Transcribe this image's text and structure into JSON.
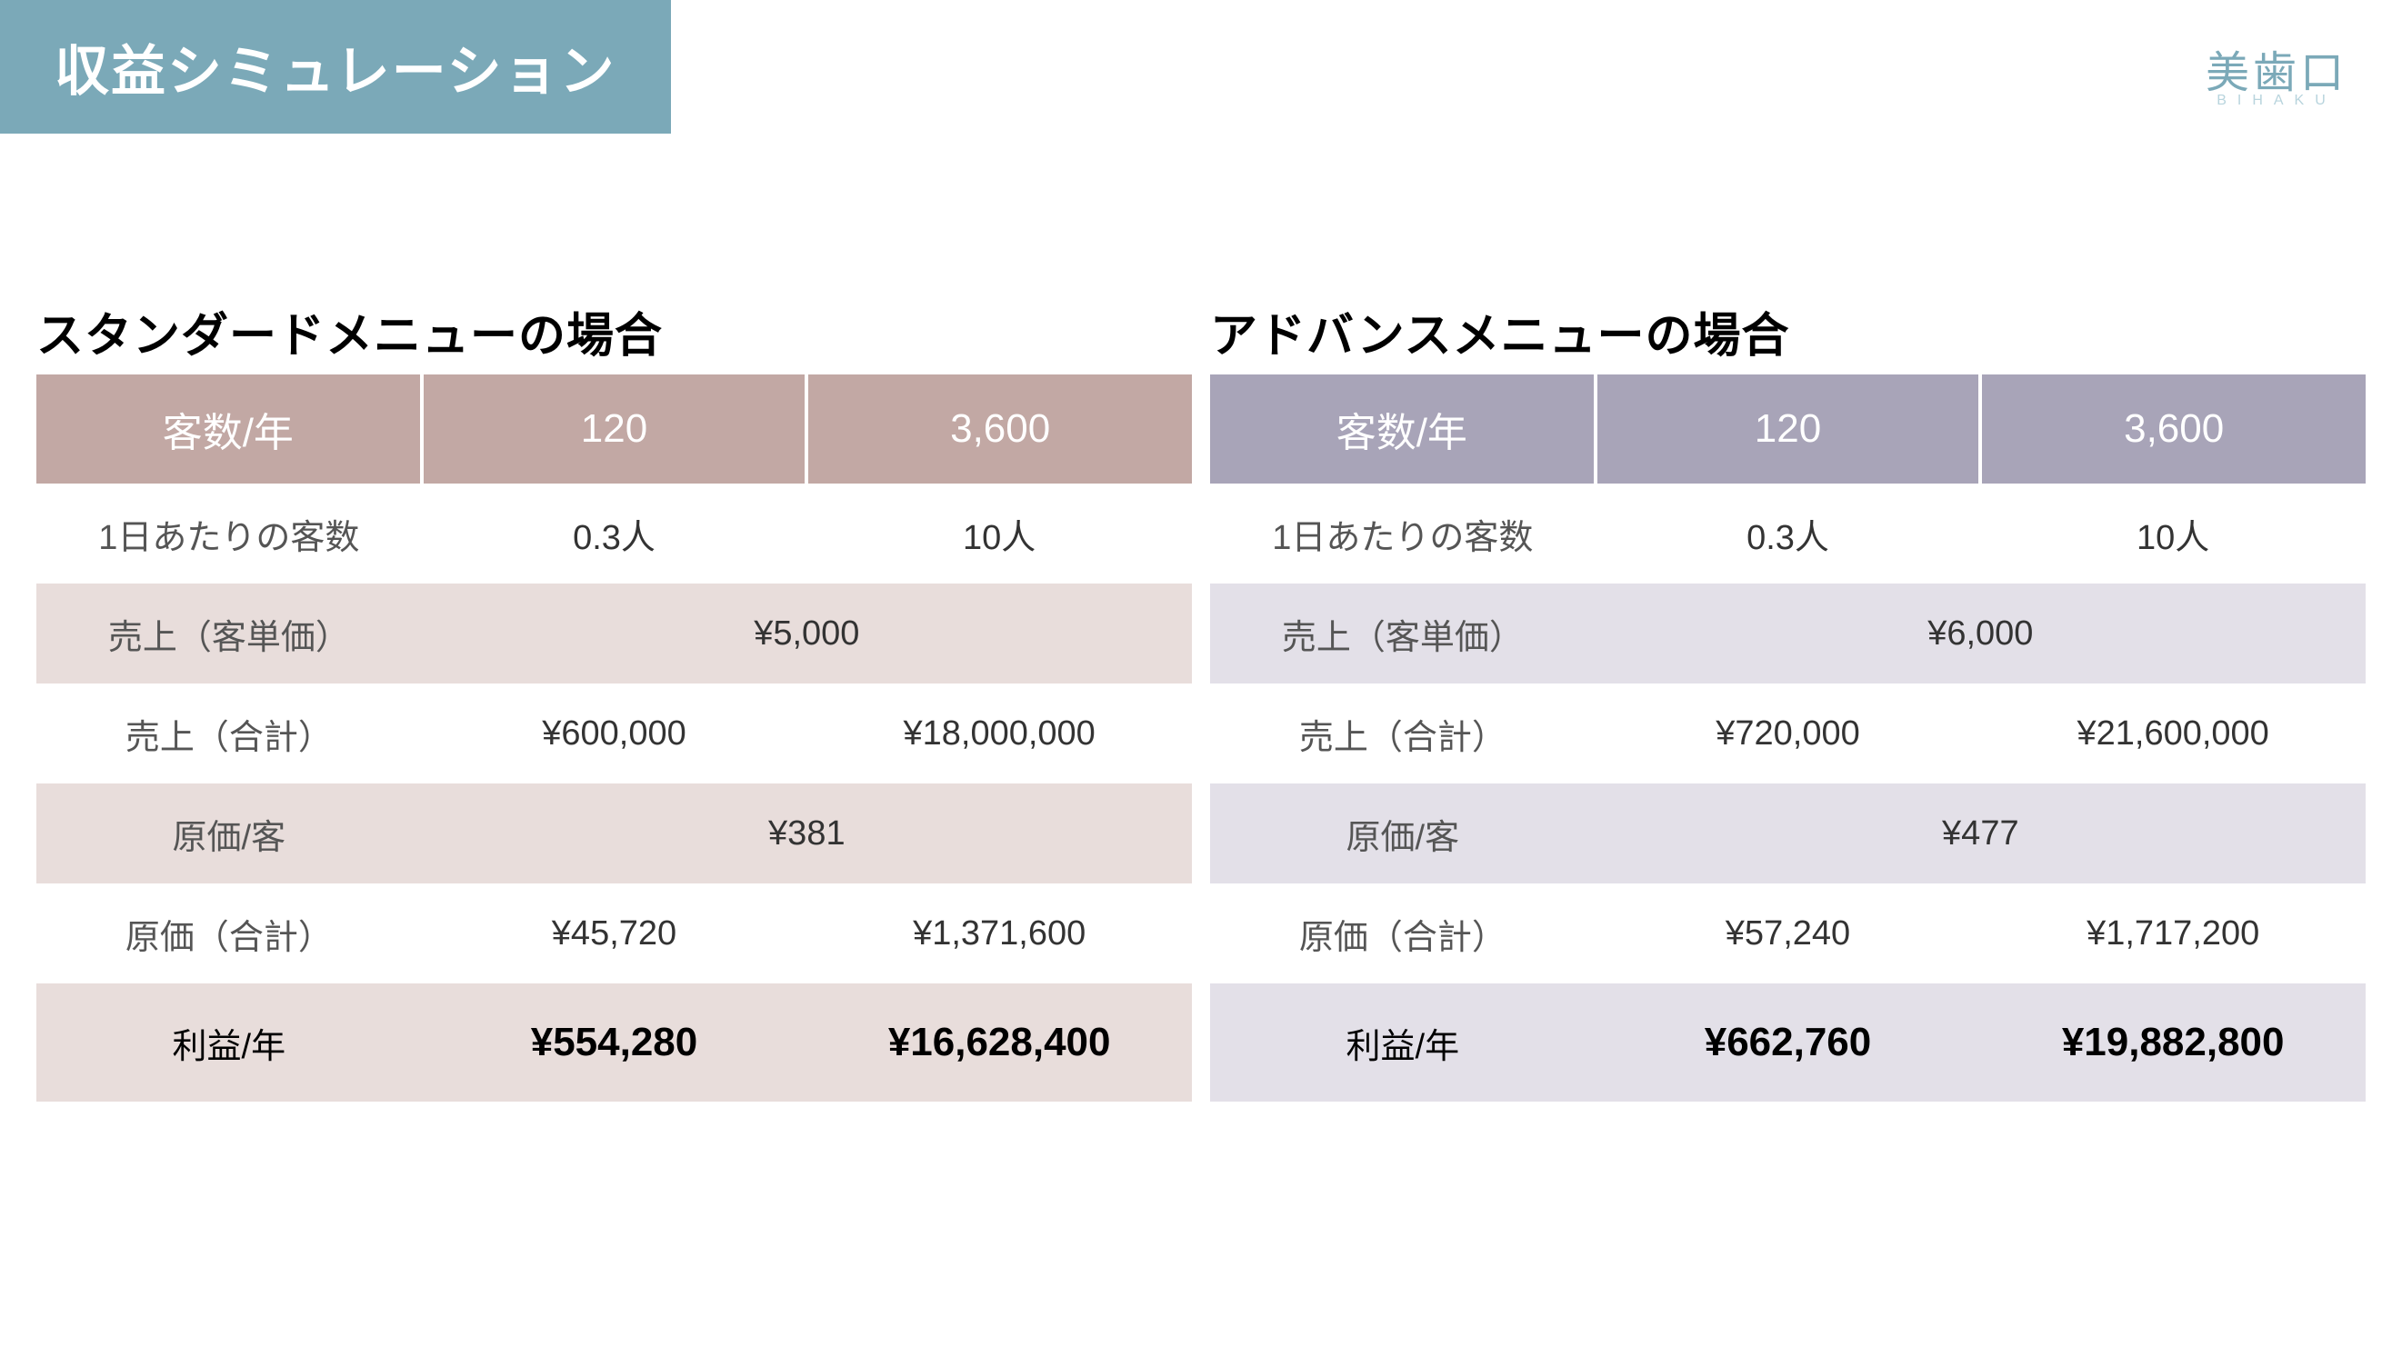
{
  "page_title": "収益シミュレーション",
  "logo": {
    "main": "美歯口",
    "sub": "BIHAKU"
  },
  "tables": {
    "standard": {
      "title": "スタンダードメニューの場合",
      "header_bg": "#c2a8a4",
      "alt_bg": "#e8dddb",
      "header": {
        "col0": "客数/年",
        "col1": "120",
        "col2": "3,600"
      },
      "rows": {
        "customers_per_day": {
          "label": "1日あたりの客数",
          "val1": "0.3人",
          "val2": "10人"
        },
        "sales_unit": {
          "label": "売上（客単価）",
          "merged_val": "¥5,000"
        },
        "sales_total": {
          "label": "売上（合計）",
          "val1": "¥600,000",
          "val2": "¥18,000,000"
        },
        "cost_unit": {
          "label": "原価/客",
          "merged_val": "¥381"
        },
        "cost_total": {
          "label": "原価（合計）",
          "val1": "¥45,720",
          "val2": "¥1,371,600"
        },
        "profit": {
          "label": "利益/年",
          "val1": "¥554,280",
          "val2": "¥16,628,400"
        }
      }
    },
    "advance": {
      "title": "アドバンスメニューの場合",
      "header_bg": "#a8a4b8",
      "alt_bg": "#e3e0e8",
      "header": {
        "col0": "客数/年",
        "col1": "120",
        "col2": "3,600"
      },
      "rows": {
        "customers_per_day": {
          "label": "1日あたりの客数",
          "val1": "0.3人",
          "val2": "10人"
        },
        "sales_unit": {
          "label": "売上（客単価）",
          "merged_val": "¥6,000"
        },
        "sales_total": {
          "label": "売上（合計）",
          "val1": "¥720,000",
          "val2": "¥21,600,000"
        },
        "cost_unit": {
          "label": "原価/客",
          "merged_val": "¥477"
        },
        "cost_total": {
          "label": "原価（合計）",
          "val1": "¥57,240",
          "val2": "¥1,717,200"
        },
        "profit": {
          "label": "利益/年",
          "val1": "¥662,760",
          "val2": "¥19,882,800"
        }
      }
    }
  }
}
